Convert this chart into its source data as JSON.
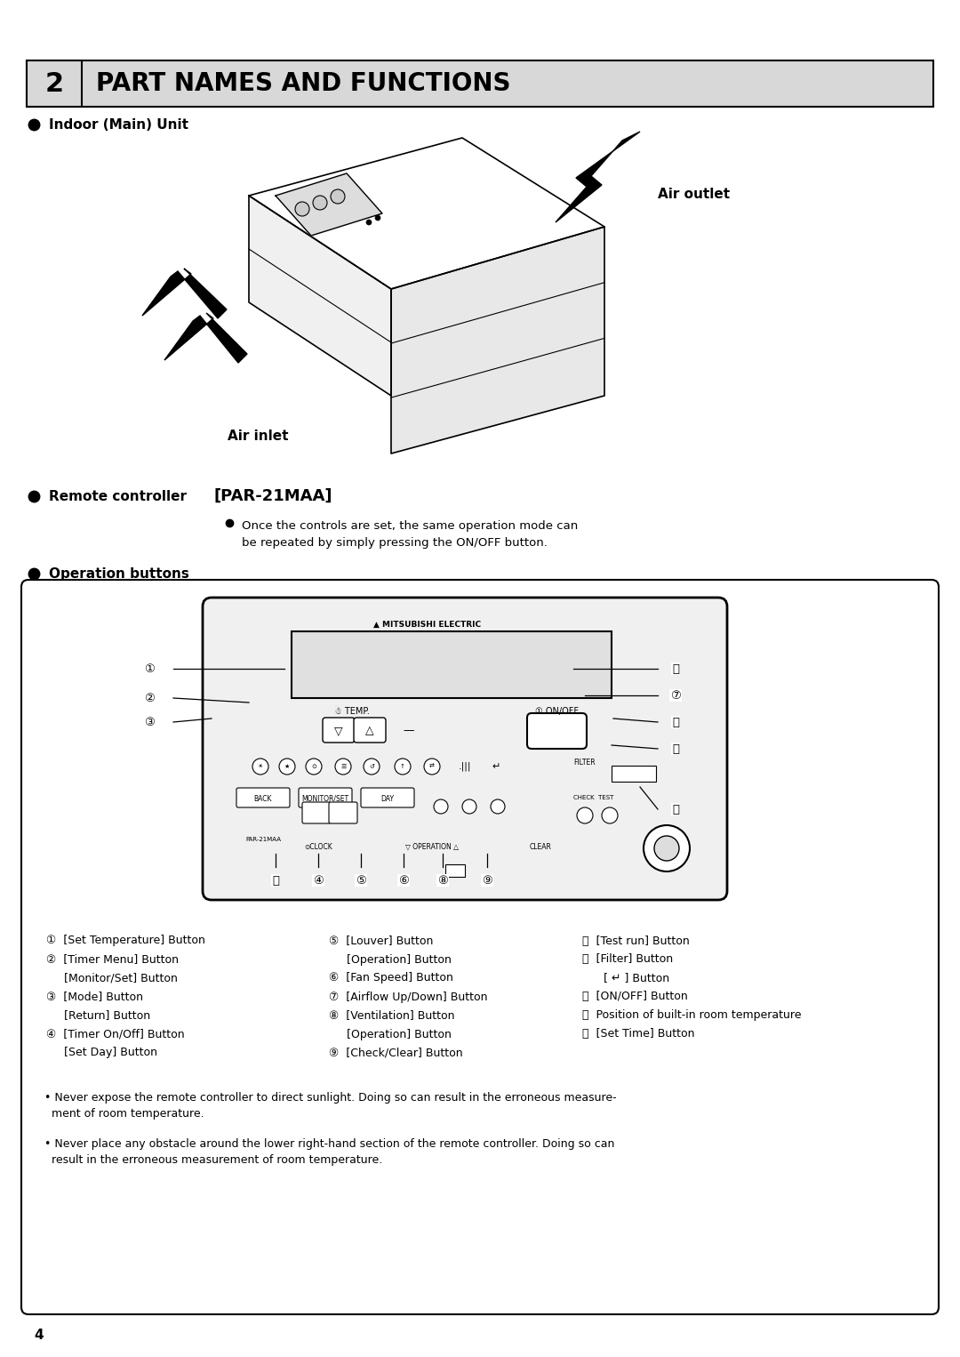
{
  "title_number": "2",
  "title_text": "PART NAMES AND FUNCTIONS",
  "section1_label": "Indoor (Main) Unit",
  "air_outlet_label": "Air outlet",
  "air_inlet_label": "Air inlet",
  "section2_label": "Remote controller",
  "remote_model": "[PAR-21MAA]",
  "remote_note": "Once the controls are set, the same operation mode can\nbe repeated by simply pressing the ON/OFF button.",
  "section3_label": "Operation buttons",
  "button_labels_col1": [
    "①  [Set Temperature] Button",
    "②  [Timer Menu] Button",
    "     [Monitor/Set] Button",
    "③  [Mode] Button",
    "     [Return] Button",
    "④  [Timer On/Off] Button",
    "     [Set Day] Button"
  ],
  "button_labels_col2": [
    "⑤  [Louver] Button",
    "     [Operation] Button",
    "⑥  [Fan Speed] Button",
    "⑦  [Airflow Up/Down] Button",
    "⑧  [Ventilation] Button",
    "     [Operation] Button",
    "⑨  [Check/Clear] Button"
  ],
  "button_labels_col3": [
    "⑭  [Test run] Button",
    "⑮  [Filter] Button",
    "      [ ↵ ] Button",
    "⑯  [ON/OFF] Button",
    "⒳  Position of built-in room temperature",
    "⒵  [Set Time] Button"
  ],
  "notes": [
    "• Never expose the remote controller to direct sunlight. Doing so can result in the erroneous measure-\n  ment of room temperature.",
    "• Never place any obstacle around the lower right-hand section of the remote controller. Doing so can\n  result in the erroneous measurement of room temperature."
  ],
  "page_number": "4",
  "bg_color": "#ffffff",
  "header_bg": "#d8d8d8",
  "border_color": "#000000",
  "text_color": "#000000"
}
